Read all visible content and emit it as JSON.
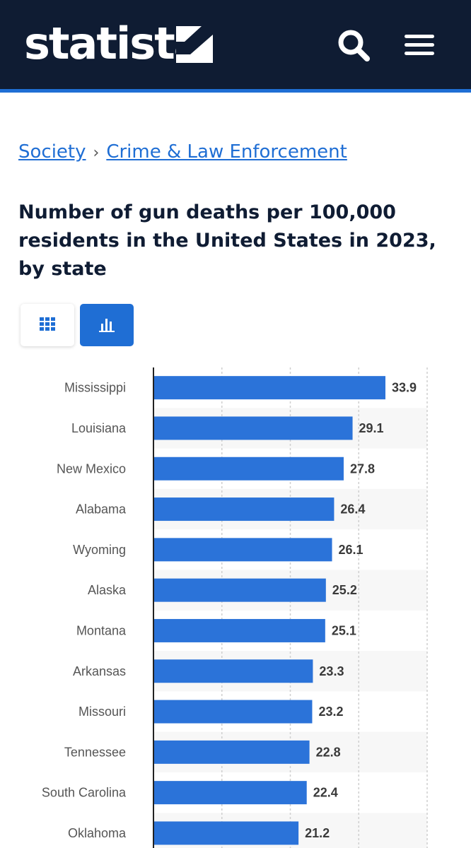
{
  "header": {
    "logo_text": "statista",
    "colors": {
      "background": "#0f1c33",
      "accent": "#1f6ed4"
    },
    "icons": [
      "statista-logo-mark",
      "search-icon",
      "menu-icon"
    ]
  },
  "breadcrumb": {
    "items": [
      "Society",
      "Crime & Law Enforcement"
    ],
    "separator": "›"
  },
  "page": {
    "title": "Number of gun deaths per 100,000 residents in the United States in 2023, by state"
  },
  "view_toggle": {
    "options": [
      "table-view",
      "chart-view"
    ],
    "selected": "chart-view"
  },
  "chart_data": {
    "type": "bar",
    "orientation": "horizontal",
    "categories": [
      "Mississippi",
      "Louisiana",
      "New Mexico",
      "Alabama",
      "Wyoming",
      "Alaska",
      "Montana",
      "Arkansas",
      "Missouri",
      "Tennessee",
      "South Carolina",
      "Oklahoma"
    ],
    "values": [
      33.9,
      29.1,
      27.8,
      26.4,
      26.1,
      25.2,
      25.1,
      23.3,
      23.2,
      22.8,
      22.4,
      21.2
    ],
    "value_labels": [
      "33.9",
      "29.1",
      "27.8",
      "26.4",
      "26.1",
      "25.2",
      "25.1",
      "23.3",
      "23.2",
      "22.8",
      "22.4",
      "21.2"
    ],
    "xlim": [
      0,
      40
    ],
    "grid": true,
    "bar_color": "#2b73d9"
  }
}
